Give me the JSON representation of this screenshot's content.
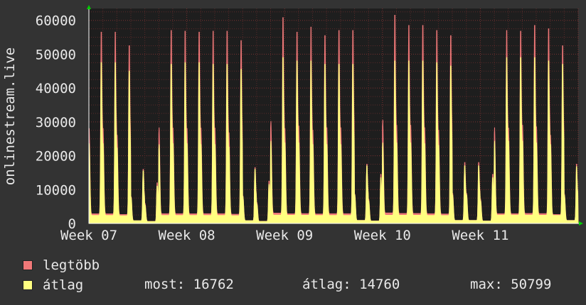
{
  "chart_data": {
    "type": "area",
    "ylabel": "onlinestream.live",
    "ylim": [
      0,
      63500
    ],
    "yticks": [
      0,
      10000,
      20000,
      30000,
      40000,
      50000,
      60000
    ],
    "xticks": [
      "Week 07",
      "Week 08",
      "Week 09",
      "Week 10",
      "Week 11"
    ],
    "grid": true,
    "days": 35,
    "series": [
      {
        "name": "legtöbb",
        "color": "#f07878",
        "daily_peaks": [
          56500,
          52500,
          16000,
          12000,
          57000,
          56800,
          56500,
          56800,
          54000,
          16500,
          12500,
          60800,
          56500,
          58000,
          55500,
          57000,
          17500,
          14500,
          61500,
          58500,
          58500,
          57000,
          55500,
          18000,
          14500,
          57000,
          56800,
          58500,
          57500,
          52500,
          17500
        ]
      },
      {
        "name": "átlag",
        "color": "#ffff80",
        "daily_peaks": [
          47500,
          45000,
          15500,
          11000,
          47000,
          47500,
          47500,
          47000,
          45500,
          16000,
          11500,
          49000,
          48000,
          48000,
          47000,
          47000,
          17000,
          13500,
          48000,
          48000,
          48000,
          47500,
          46500,
          17000,
          13500,
          49000,
          49000,
          49000,
          48000,
          47000,
          16762
        ]
      }
    ],
    "legend": [
      {
        "label": "legtöbb",
        "color": "#f07878"
      },
      {
        "label": "átlag",
        "color": "#ffff80"
      }
    ]
  },
  "stats": {
    "most": "most: 16762",
    "atlag": "átlag: 14760",
    "max": "max: 50799"
  },
  "colors": {
    "background": "#333333",
    "plot_background": "#1e1e1e",
    "grid_minor": "#5a2a2a",
    "grid_major": "#7a3030",
    "axis": "#ffffff",
    "text": "#e9e9e9",
    "arrow": "#00cc00"
  }
}
